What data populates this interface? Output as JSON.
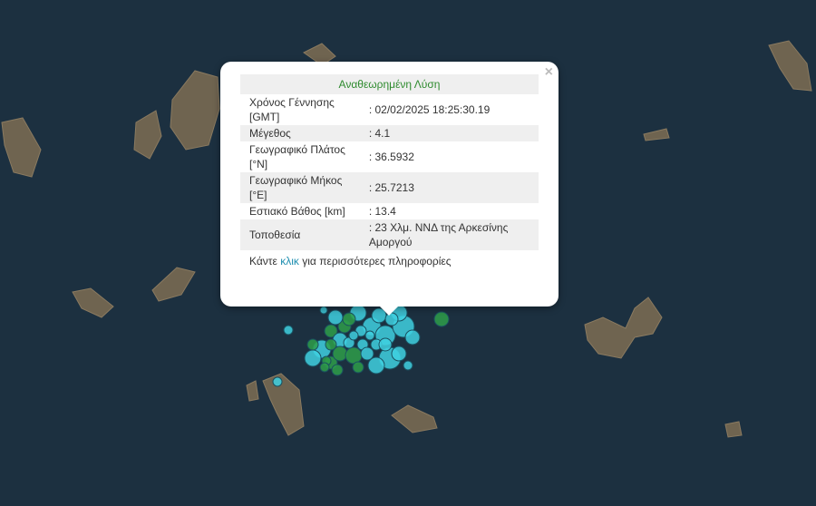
{
  "popup": {
    "title": "Αναθεωρημένη Λύση",
    "close_label": "×",
    "rows": [
      {
        "label": "Χρόνος Γέννησης [GMT]",
        "value": ": 02/02/2025 18:25:30.19"
      },
      {
        "label": "Μέγεθος",
        "value": ": 4.1"
      },
      {
        "label": "Γεωγραφικό Πλάτος [°N]",
        "value": ": 36.5932"
      },
      {
        "label": "Γεωγραφικό Μήκος [°E]",
        "value": ": 25.7213"
      },
      {
        "label": "Εστιακό Βάθος [km]",
        "value": ": 13.4"
      },
      {
        "label": "Τοποθεσία",
        "value": ": 23 Χλμ. ΝΝΔ της Αρκεσίνης Αμοργού"
      }
    ],
    "more_prefix": "Κάντε",
    "more_link": "κλικ",
    "more_suffix": "για περισσότερες πληροφορίες"
  },
  "colors": {
    "sea": "#1c3040",
    "land": "#7a6a55",
    "marker_cyan": "#3fd0e0",
    "marker_green": "#2e9e4a",
    "title_green": "#2e8b2e",
    "link": "#1f8fb0"
  }
}
